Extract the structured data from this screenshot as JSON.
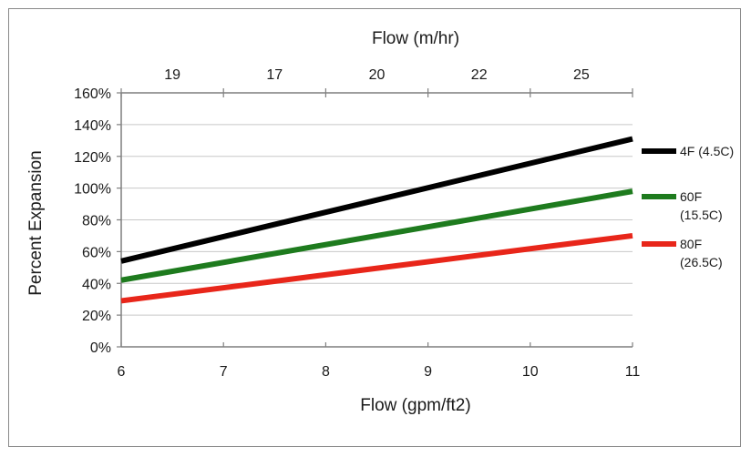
{
  "chart_data": {
    "type": "line",
    "title": "",
    "xlabel": "Flow (gpm/ft2)",
    "ylabel": "Percent Expansion",
    "x2label": "Flow (m/hr)",
    "xlim": [
      6,
      11
    ],
    "ylim": [
      0,
      160
    ],
    "x_ticks": [
      "6",
      "7",
      "8",
      "9",
      "10",
      "11"
    ],
    "y_ticks": [
      "0%",
      "20%",
      "40%",
      "60%",
      "80%",
      "100%",
      "120%",
      "140%",
      "160%"
    ],
    "x2_ticks": [
      "19",
      "17",
      "20",
      "22",
      "25"
    ],
    "grid": true,
    "legend_position": "right",
    "series": [
      {
        "name": "4F (4.5C)",
        "color": "#000000",
        "x": [
          6,
          11
        ],
        "y": [
          54,
          131
        ]
      },
      {
        "name": "60F (15.5C)",
        "color": "#1e7b1e",
        "x": [
          6,
          11
        ],
        "y": [
          42,
          98
        ]
      },
      {
        "name": "80F (26.5C)",
        "color": "#e8261a",
        "x": [
          6,
          11
        ],
        "y": [
          29,
          70
        ]
      }
    ],
    "legend_lines": [
      [
        "4F (4.5C)"
      ],
      [
        "60F",
        "(15.5C)"
      ],
      [
        "80F",
        "(26.5C)"
      ]
    ]
  }
}
